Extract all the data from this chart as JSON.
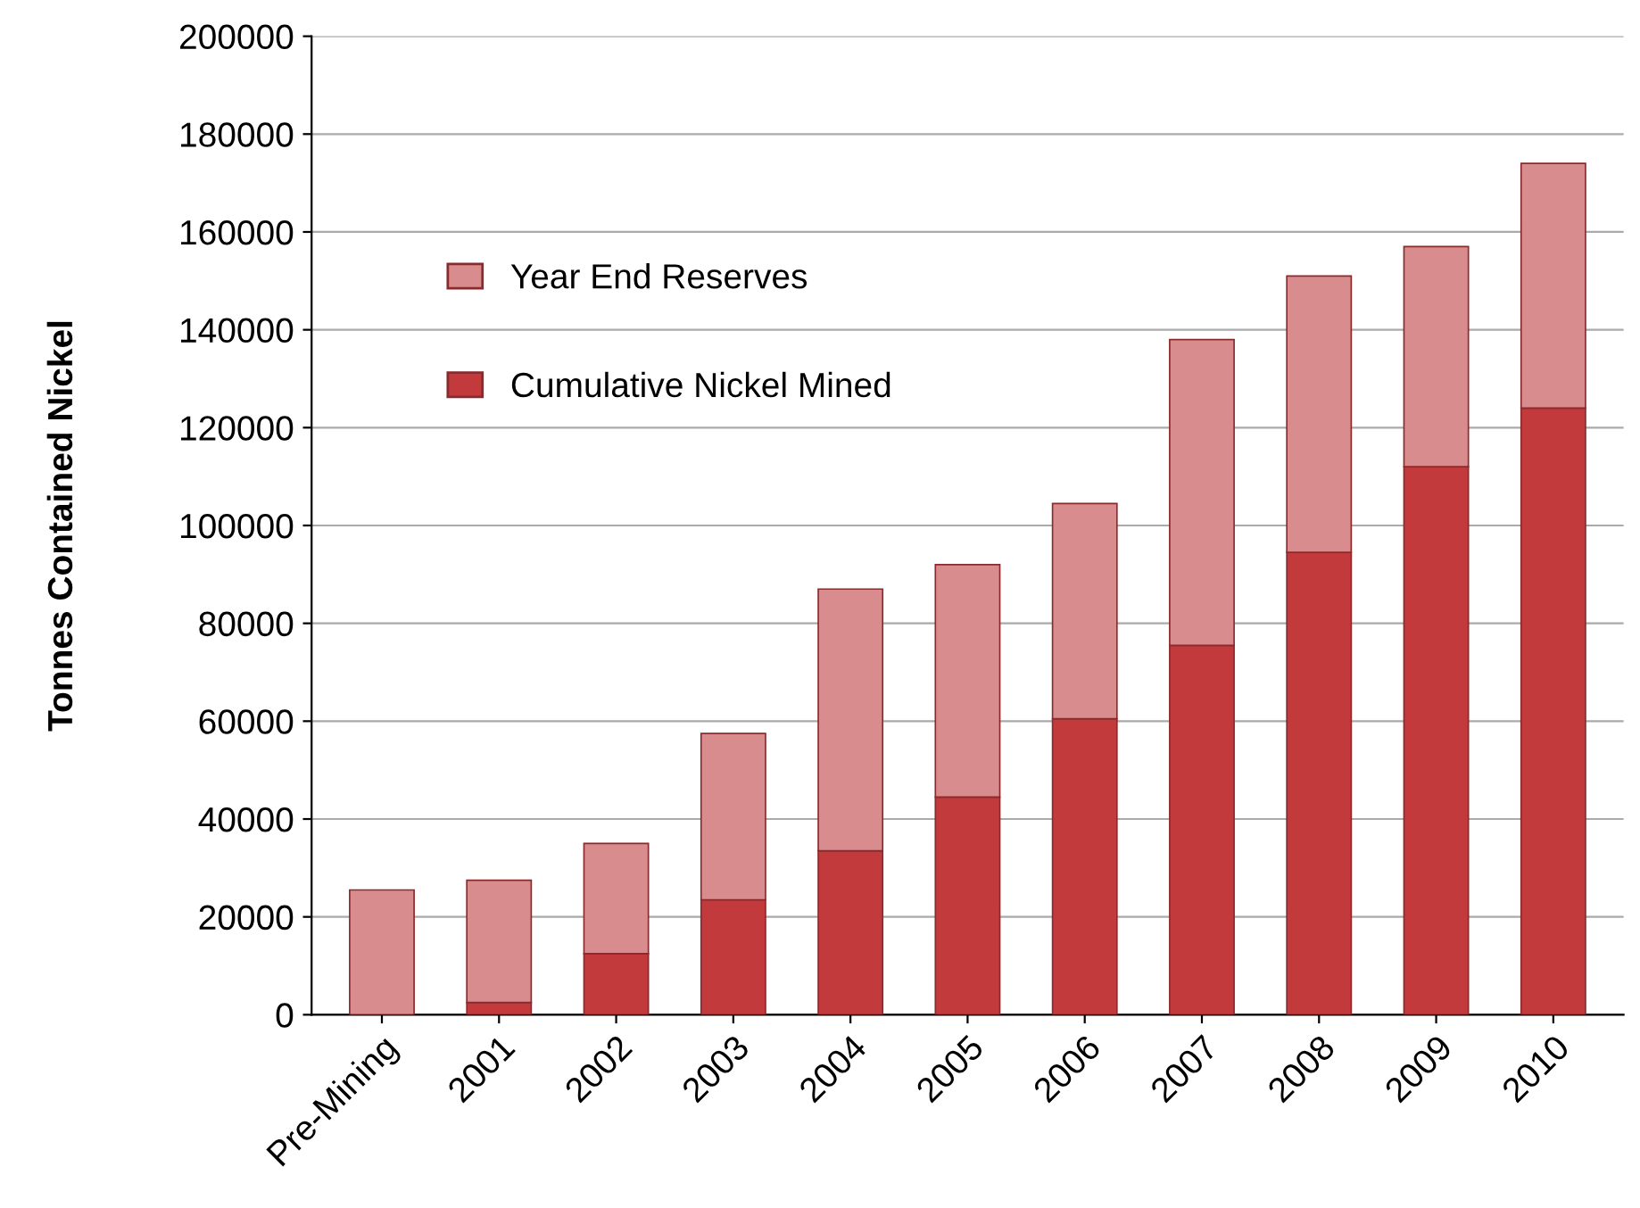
{
  "chart_data": {
    "type": "bar",
    "stacked": true,
    "ylabel": "Tonnes Contained Nickel",
    "categories": [
      "Pre-Mining",
      "2001",
      "2002",
      "2003",
      "2004",
      "2005",
      "2006",
      "2007",
      "2008",
      "2009",
      "2010"
    ],
    "series": [
      {
        "name": "Cumulative Nickel Mined",
        "color": "#c23a3c",
        "values": [
          0,
          2500,
          12500,
          23500,
          33500,
          44500,
          60500,
          75500,
          94500,
          112000,
          124000
        ]
      },
      {
        "name": "Year End Reserves",
        "color": "#d98c8e",
        "values": [
          25500,
          25000,
          22500,
          34000,
          53500,
          47500,
          44000,
          62500,
          56500,
          45000,
          50000
        ]
      }
    ],
    "ylim": [
      0,
      200000
    ],
    "yticks": [
      0,
      20000,
      40000,
      60000,
      80000,
      100000,
      120000,
      140000,
      160000,
      180000,
      200000
    ],
    "grid": "y",
    "legend": "top left"
  }
}
